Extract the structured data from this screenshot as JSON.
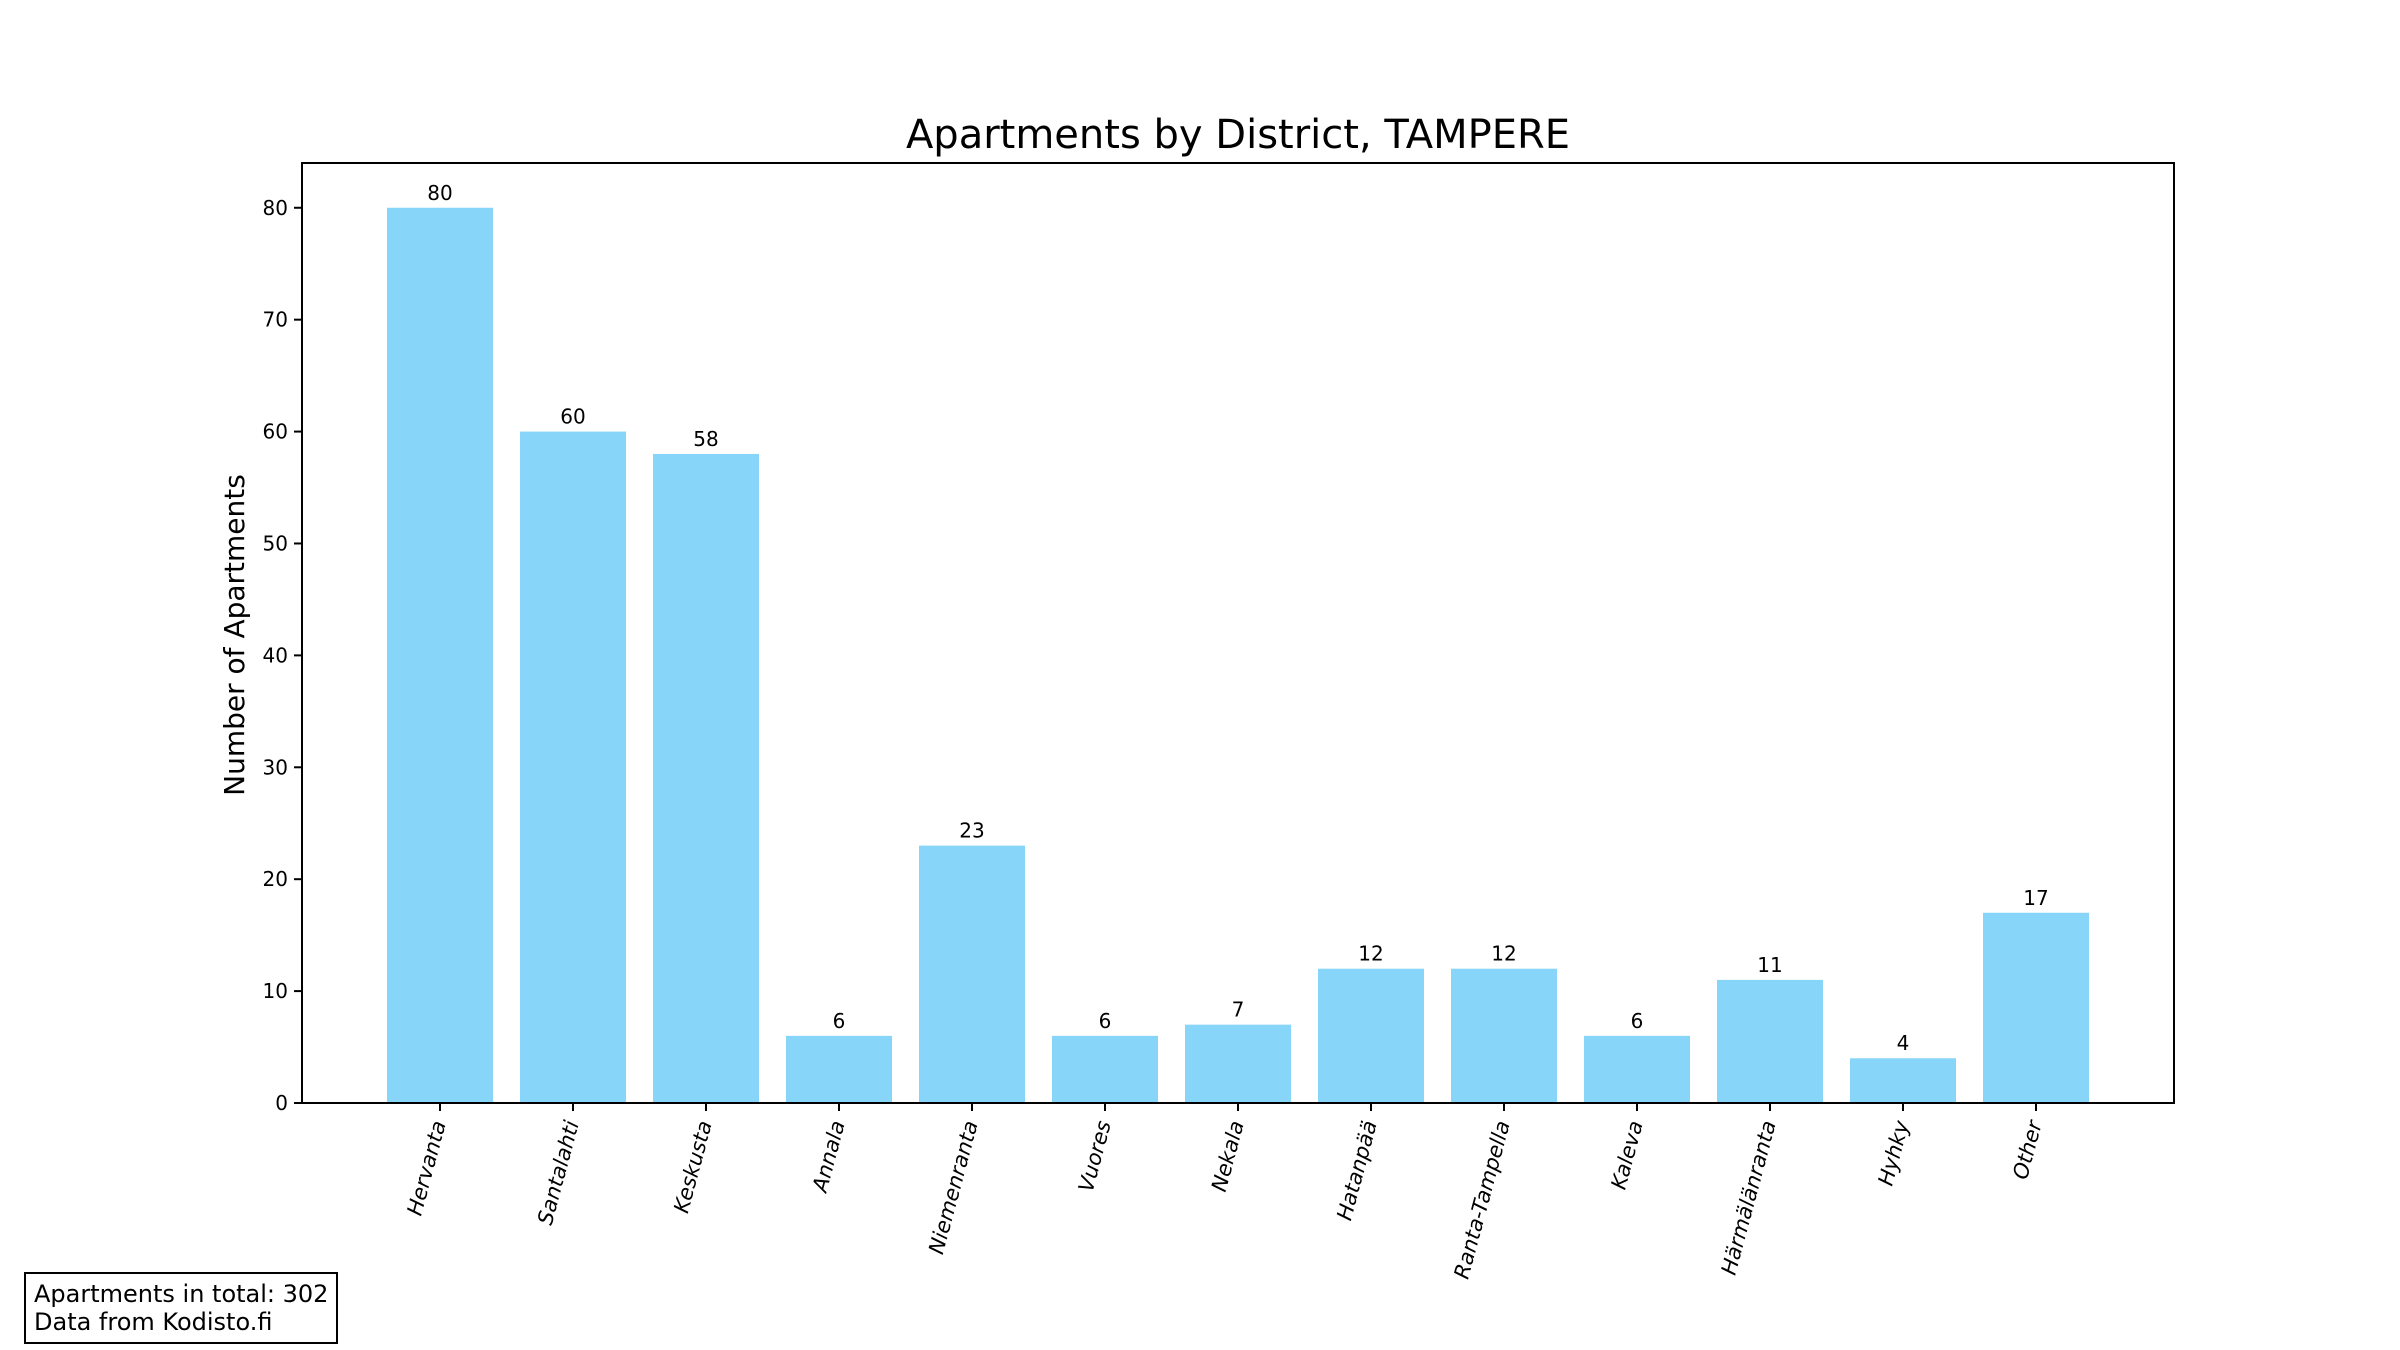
{
  "chart_data": {
    "type": "bar",
    "title": "Apartments by District, TAMPERE",
    "xlabel": "",
    "ylabel": "Number of Apartments",
    "categories": [
      "Hervanta",
      "Santalahti",
      "Keskusta",
      "Annala",
      "Niemenranta",
      "Vuores",
      "Nekala",
      "Hatanpää",
      "Ranta-Tampella",
      "Kaleva",
      "Härmälänranta",
      "Hyhky",
      "Other"
    ],
    "values": [
      80,
      60,
      58,
      6,
      23,
      6,
      7,
      12,
      12,
      6,
      11,
      4,
      17
    ],
    "ylim": [
      0,
      84
    ],
    "yticks": [
      0,
      10,
      20,
      30,
      40,
      50,
      60,
      70,
      80
    ],
    "grid": false,
    "bar_color": "#87d6fa"
  },
  "info": {
    "total_line": "Apartments in total: 302",
    "source_line": "Data from Kodisto.fi"
  }
}
